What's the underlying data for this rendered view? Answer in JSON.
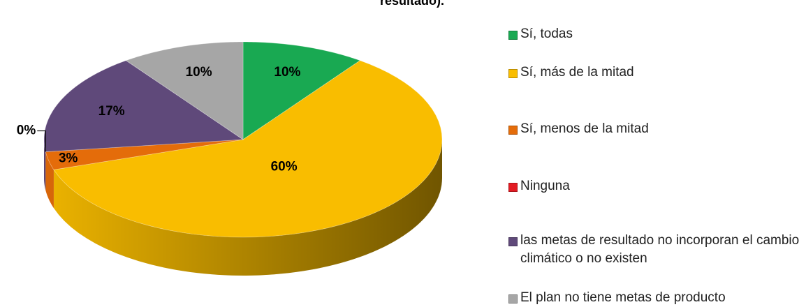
{
  "chart_data": {
    "type": "pie",
    "title": "resultado).",
    "categories": [
      "Sí, todas",
      "Sí, más de la mitad",
      "Sí, menos de la mitad",
      "Ninguna",
      "las metas de resultado no incorporan el cambio climático o no existen",
      "El plan no tiene metas de producto"
    ],
    "values": [
      10,
      60,
      3,
      0,
      17,
      10
    ],
    "value_labels": [
      "10%",
      "60%",
      "3%",
      "0%",
      "17%",
      "10%"
    ],
    "colors": [
      "#19a952",
      "#f9bd00",
      "#e46c0a",
      "#e31b23",
      "#5f497a",
      "#a6a6a6"
    ],
    "legend": "right"
  }
}
